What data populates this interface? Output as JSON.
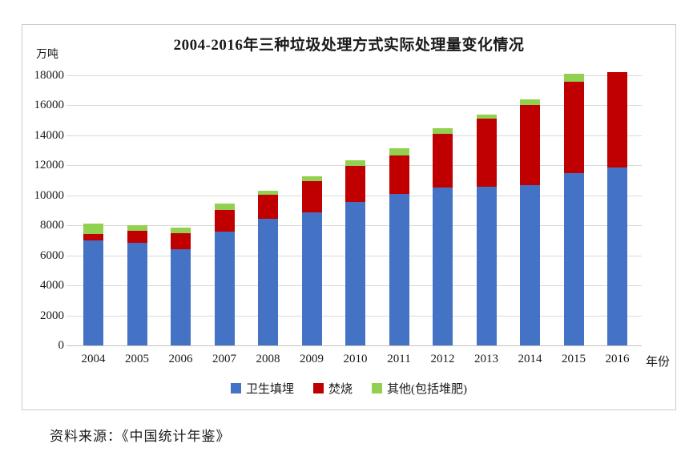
{
  "page": {
    "source_note": "资料来源：《中国统计年鉴》"
  },
  "chart_data": {
    "type": "bar",
    "stacked": true,
    "title": "2004-2016年三种垃圾处理方式实际处理量变化情况",
    "unit_label": "万吨",
    "xlabel": "年份",
    "ylabel": "",
    "ylim": [
      0,
      18000
    ],
    "ytick_step": 2000,
    "grid": true,
    "legend_position": "bottom",
    "categories": [
      "2004",
      "2005",
      "2006",
      "2007",
      "2008",
      "2009",
      "2010",
      "2011",
      "2012",
      "2013",
      "2014",
      "2015",
      "2016"
    ],
    "series": [
      {
        "name": "卫生填埋",
        "color": "#4472C4",
        "values": [
          7000,
          6850,
          6400,
          7600,
          8450,
          8850,
          9550,
          10100,
          10500,
          10550,
          10700,
          11500,
          11850
        ]
      },
      {
        "name": "焚烧",
        "color": "#C00000",
        "values": [
          400,
          800,
          1100,
          1450,
          1600,
          2100,
          2400,
          2550,
          3600,
          4550,
          5350,
          6100,
          6350
        ]
      },
      {
        "name": "其他(包括堆肥)",
        "color": "#92D050",
        "values": [
          700,
          350,
          350,
          400,
          250,
          300,
          400,
          500,
          350,
          270,
          350,
          500,
          0
        ]
      }
    ],
    "colors": {
      "gridline": "#d9d9d9",
      "axis": "#c4c4c4"
    }
  }
}
